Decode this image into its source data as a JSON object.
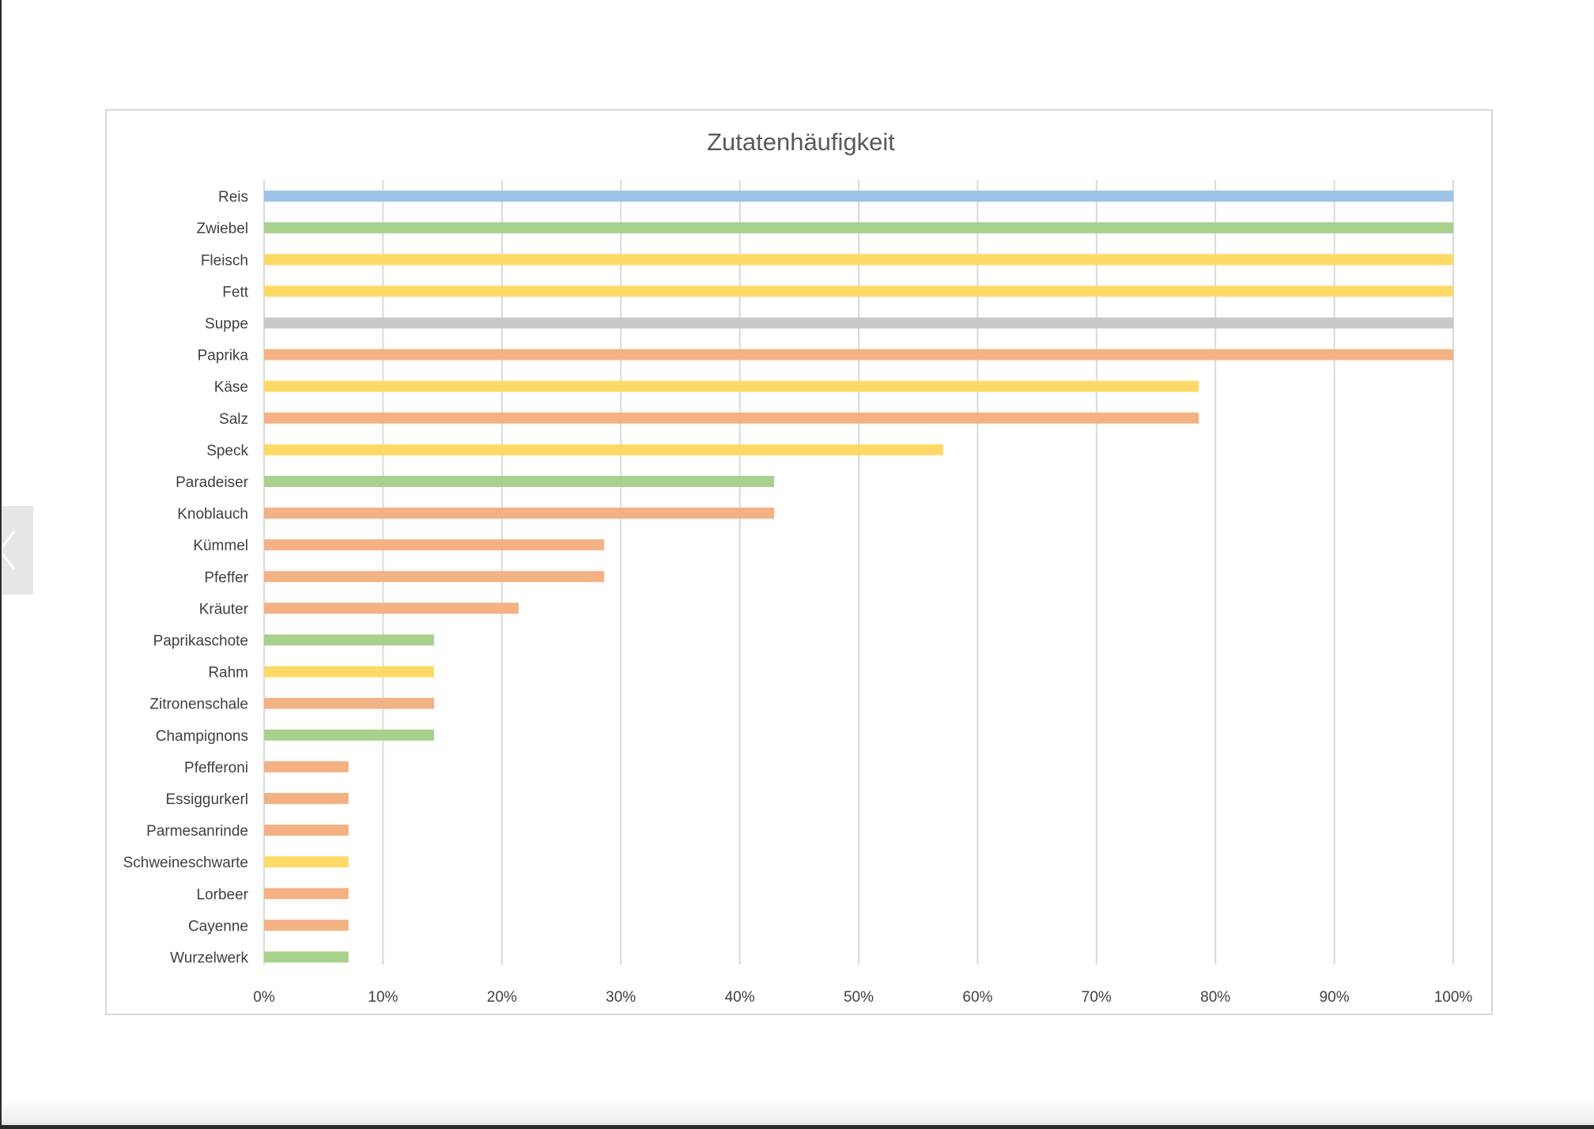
{
  "chart_data": {
    "type": "bar",
    "orientation": "horizontal",
    "title": "Zutatenhäufigkeit",
    "xlabel": "",
    "ylabel": "",
    "xlim": [
      0,
      100
    ],
    "x_ticks": [
      "0%",
      "10%",
      "20%",
      "30%",
      "40%",
      "50%",
      "60%",
      "70%",
      "80%",
      "90%",
      "100%"
    ],
    "grid": "vertical",
    "legend": "none",
    "categories": [
      "Reis",
      "Zwiebel",
      "Fleisch",
      "Fett",
      "Suppe",
      "Paprika",
      "Käse",
      "Salz",
      "Speck",
      "Paradeiser",
      "Knoblauch",
      "Kümmel",
      "Pfeffer",
      "Kräuter",
      "Paprikaschote",
      "Rahm",
      "Zitronenschale",
      "Champignons",
      "Pfefferoni",
      "Essiggurkerl",
      "Parmesanrinde",
      "Schweineschwarte",
      "Lorbeer",
      "Cayenne",
      "Wurzelwerk"
    ],
    "values": [
      100,
      100,
      100,
      100,
      100,
      100,
      78.6,
      78.6,
      57.1,
      42.9,
      42.9,
      28.6,
      28.6,
      21.4,
      14.3,
      14.3,
      14.3,
      14.3,
      7.1,
      7.1,
      7.1,
      7.1,
      7.1,
      7.1,
      7.1
    ],
    "bar_colors": [
      "#9dc3e6",
      "#a9d18e",
      "#ffd966",
      "#ffd966",
      "#c9c9c9",
      "#f4b183",
      "#ffd966",
      "#f4b183",
      "#ffd966",
      "#a9d18e",
      "#f4b183",
      "#f4b183",
      "#f4b183",
      "#f4b183",
      "#a9d18e",
      "#ffd966",
      "#f4b183",
      "#a9d18e",
      "#f4b183",
      "#f4b183",
      "#f4b183",
      "#ffd966",
      "#f4b183",
      "#f4b183",
      "#a9d18e"
    ]
  },
  "side_nav": {
    "icon": "chevron-left-icon"
  },
  "colors": {
    "frame_border": "#d9d9d9",
    "grid": "#d9d9d9",
    "text": "#404040"
  }
}
